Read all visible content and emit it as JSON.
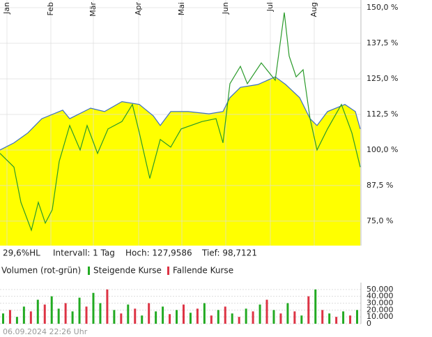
{
  "chart_data": [
    {
      "type": "line",
      "annotations": [
        "29,6%HL",
        "Intervall: 1 Tag",
        "Hoch: 127,9586",
        "Tief: 98,7121"
      ],
      "xlim": [
        0,
        518
      ],
      "xticks": [
        {
          "value": 10,
          "label": "Jan"
        },
        {
          "value": 73,
          "label": "Feb"
        },
        {
          "value": 134,
          "label": "Mär"
        },
        {
          "value": 199,
          "label": "Apr"
        },
        {
          "value": 261,
          "label": "Mai"
        },
        {
          "value": 324,
          "label": "Jun"
        },
        {
          "value": 388,
          "label": "Jul"
        },
        {
          "value": 451,
          "label": "Aug"
        }
      ],
      "ylim": [
        66.4,
        152.7
      ],
      "yticks": [
        {
          "value": 75,
          "label": "75,0 %"
        },
        {
          "value": 87.5,
          "label": "87,5 %"
        },
        {
          "value": 100,
          "label": "100,0 %"
        },
        {
          "value": 112.5,
          "label": "112,5 %"
        },
        {
          "value": 125,
          "label": "125,0 %"
        },
        {
          "value": 137.5,
          "label": "137,5 %"
        },
        {
          "value": 150,
          "label": "150,0 %"
        }
      ],
      "grid": true,
      "series": [
        {
          "color": "#3a6fc4",
          "fill": "#ffff00",
          "x": [
            0,
            20,
            40,
            60,
            90,
            100,
            130,
            150,
            175,
            200,
            220,
            230,
            245,
            270,
            300,
            320,
            330,
            345,
            370,
            395,
            410,
            430,
            445,
            455,
            470,
            495,
            510,
            517
          ],
          "values": [
            100,
            102.5,
            106,
            111,
            114,
            111,
            114.7,
            113.5,
            117,
            116,
            112,
            108.6,
            113.5,
            113.5,
            112.7,
            113.5,
            118.4,
            122,
            123,
            125.7,
            123,
            118.4,
            111,
            108.6,
            113.5,
            116,
            113.5,
            107.4
          ]
        },
        {
          "color": "#2a9a2a",
          "x": [
            0,
            20,
            30,
            45,
            55,
            65,
            75,
            85,
            100,
            115,
            125,
            140,
            155,
            175,
            190,
            200,
            215,
            230,
            245,
            260,
            290,
            310,
            320,
            330,
            345,
            355,
            375,
            395,
            408,
            415,
            425,
            435,
            445,
            455,
            470,
            490,
            505,
            517
          ],
          "values": [
            98.8,
            94,
            81.6,
            71.8,
            81.6,
            74.3,
            79,
            96,
            108.6,
            100,
            108.6,
            98.8,
            107.4,
            110,
            116,
            106,
            90,
            103.7,
            101,
            107.4,
            110,
            111,
            102.5,
            123.3,
            129.4,
            123.3,
            130.6,
            124.5,
            148.3,
            133,
            125.7,
            128.2,
            111,
            100,
            107.4,
            116,
            106,
            94
          ]
        }
      ]
    },
    {
      "type": "bar",
      "title": "Volumen (rot-grün)",
      "ylim": [
        0,
        60000
      ],
      "yticks": [
        {
          "value": 0,
          "label": "0"
        },
        {
          "value": 10000,
          "label": "10.000"
        },
        {
          "value": 20000,
          "label": "20.000"
        },
        {
          "value": 30000,
          "label": "30.000"
        },
        {
          "value": 40000,
          "label": "40.000"
        },
        {
          "value": 50000,
          "label": "50.000"
        }
      ],
      "series": [
        {
          "name": "Steigende Kurse",
          "color": "#22aa22",
          "values": [
            15000,
            null,
            10000,
            25000,
            null,
            35000,
            null,
            40000,
            22000,
            null,
            18000,
            38000,
            null,
            45000,
            30000,
            null,
            20000,
            null,
            28000,
            null,
            12000,
            null,
            18000,
            25000,
            null,
            20000,
            null,
            16000,
            null,
            30000,
            null,
            20000,
            null,
            15000,
            null,
            22000,
            null,
            28000,
            null,
            20000,
            null,
            30000,
            null,
            12000,
            null,
            50000,
            null,
            15000,
            null,
            18000,
            null,
            20000
          ]
        },
        {
          "name": "Fallende Kurse",
          "color": "#dd3344",
          "values": [
            null,
            20000,
            null,
            null,
            18000,
            null,
            28000,
            null,
            null,
            30000,
            null,
            null,
            25000,
            null,
            null,
            50000,
            null,
            15000,
            null,
            22000,
            null,
            30000,
            null,
            null,
            14000,
            null,
            28000,
            null,
            22000,
            null,
            12000,
            null,
            25000,
            null,
            10000,
            null,
            18000,
            null,
            35000,
            null,
            15000,
            null,
            18000,
            null,
            40000,
            null,
            20000,
            null,
            10000,
            null,
            12000,
            null
          ]
        }
      ]
    }
  ],
  "footer": "06.09.2024 22:26 Uhr"
}
